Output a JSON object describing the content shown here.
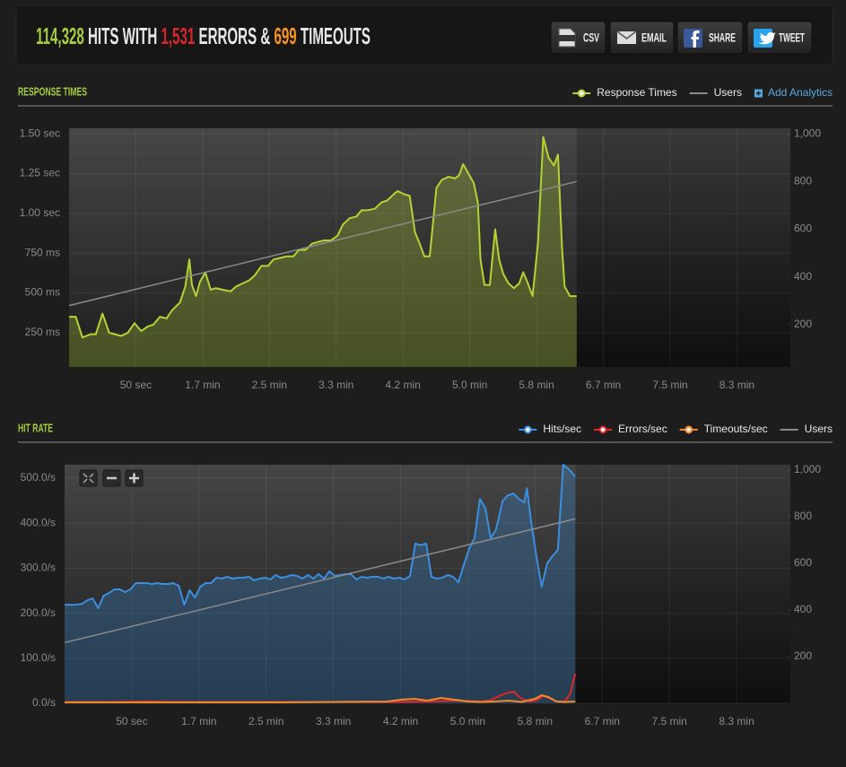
{
  "header": {
    "hits": "114,328",
    "hits_label": "HITS WITH",
    "errors": "1,531",
    "errors_label": "ERRORS &",
    "timeouts": "699",
    "timeouts_label": "TIMEOUTS"
  },
  "buttons": [
    "CSV",
    "EMAIL",
    "SHARE",
    "TWEET"
  ],
  "chart_data": [
    {
      "type": "line",
      "title": "RESPONSE TIMES",
      "legend_link": "Add Analytics",
      "xlim": [
        0,
        540
      ],
      "xticks": [
        {
          "value": 50,
          "label": "50 sec"
        },
        {
          "value": 100,
          "label": "1.7 min"
        },
        {
          "value": 150,
          "label": "2.5 min"
        },
        {
          "value": 200,
          "label": "3.3 min"
        },
        {
          "value": 250,
          "label": "4.2 min"
        },
        {
          "value": 300,
          "label": "5.0 min"
        },
        {
          "value": 350,
          "label": "5.8 min"
        },
        {
          "value": 400,
          "label": "6.7 min"
        },
        {
          "value": 450,
          "label": "7.5 min"
        },
        {
          "value": 500,
          "label": "8.3 min"
        }
      ],
      "ylim": [
        35,
        1535
      ],
      "yticks": [
        {
          "value": 250,
          "label": "250 ms"
        },
        {
          "value": 500,
          "label": "500 ms"
        },
        {
          "value": 750,
          "label": "750 ms"
        },
        {
          "value": 1000,
          "label": "1.00 sec"
        },
        {
          "value": 1250,
          "label": "1.25 sec"
        },
        {
          "value": 1500,
          "label": "1.50 sec"
        }
      ],
      "y2lim": [
        23,
        1023
      ],
      "y2ticks": [
        200,
        400,
        600,
        800,
        {
          "value": 1000,
          "label": "1,000"
        }
      ],
      "grid": true,
      "series": [
        {
          "name": "Response Times",
          "color": "#b5d334",
          "area": true,
          "marker": true,
          "x": [
            0,
            5,
            10,
            16,
            20,
            25,
            30,
            39,
            44,
            49,
            54,
            59,
            63,
            68,
            73,
            77,
            83,
            87,
            90,
            92,
            95,
            98,
            102,
            106,
            110,
            115,
            121,
            125,
            130,
            135,
            139,
            144,
            149,
            153,
            158,
            163,
            168,
            172,
            177,
            182,
            186,
            191,
            196,
            201,
            205,
            210,
            215,
            219,
            224,
            229,
            234,
            238,
            243,
            246,
            251,
            255,
            259,
            262,
            266,
            270,
            275,
            279,
            284,
            289,
            292,
            295,
            299,
            303,
            306,
            308,
            311,
            315,
            319,
            322,
            325,
            329,
            333,
            337,
            340,
            343,
            347,
            351,
            355,
            359,
            363,
            366,
            369,
            371,
            375,
            380
          ],
          "values": [
            350,
            350,
            220,
            240,
            240,
            370,
            250,
            230,
            250,
            310,
            260,
            290,
            300,
            350,
            340,
            390,
            440,
            540,
            710,
            550,
            480,
            570,
            630,
            520,
            530,
            520,
            510,
            540,
            560,
            580,
            610,
            670,
            670,
            710,
            720,
            730,
            730,
            770,
            770,
            810,
            820,
            830,
            830,
            860,
            930,
            970,
            980,
            1020,
            1020,
            1030,
            1070,
            1080,
            1120,
            1140,
            1120,
            1110,
            880,
            820,
            730,
            730,
            1160,
            1210,
            1230,
            1220,
            1240,
            1310,
            1250,
            1190,
            1070,
            710,
            550,
            550,
            900,
            710,
            620,
            560,
            530,
            560,
            630,
            570,
            480,
            810,
            1480,
            1350,
            1300,
            1370,
            790,
            540,
            480,
            480
          ]
        },
        {
          "name": "Users",
          "color": "#8a8a8a",
          "axis": "y2",
          "x": [
            0,
            380
          ],
          "values": [
            280,
            800
          ]
        }
      ]
    },
    {
      "type": "line",
      "title": "HIT RATE",
      "xlim": [
        0,
        540
      ],
      "xticks": [
        {
          "value": 50,
          "label": "50 sec"
        },
        {
          "value": 100,
          "label": "1.7 min"
        },
        {
          "value": 150,
          "label": "2.5 min"
        },
        {
          "value": 200,
          "label": "3.3 min"
        },
        {
          "value": 250,
          "label": "4.2 min"
        },
        {
          "value": 300,
          "label": "5.0 min"
        },
        {
          "value": 350,
          "label": "5.8 min"
        },
        {
          "value": 400,
          "label": "6.7 min"
        },
        {
          "value": 450,
          "label": "7.5 min"
        },
        {
          "value": 500,
          "label": "8.3 min"
        }
      ],
      "ylim": [
        0,
        530
      ],
      "yticks": [
        {
          "value": 0,
          "label": "0.0/s"
        },
        {
          "value": 100,
          "label": "100.0/s"
        },
        {
          "value": 200,
          "label": "200.0/s"
        },
        {
          "value": 300,
          "label": "300.0/s"
        },
        {
          "value": 400,
          "label": "400.0/s"
        },
        {
          "value": 500,
          "label": "500.0/s"
        }
      ],
      "y2lim": [
        0,
        1022
      ],
      "y2ticks": [
        200,
        400,
        600,
        800,
        {
          "value": 1000,
          "label": "1,000"
        }
      ],
      "grid": true,
      "series": [
        {
          "name": "Hits/sec",
          "color": "#3b8ee0",
          "area": true,
          "marker": true,
          "x": [
            0,
            8,
            13,
            17,
            21,
            25,
            29,
            33,
            37,
            41,
            45,
            49,
            53,
            57,
            61,
            65,
            69,
            73,
            77,
            81,
            85,
            89,
            93,
            97,
            101,
            105,
            109,
            113,
            117,
            121,
            125,
            129,
            133,
            137,
            141,
            145,
            149,
            153,
            157,
            161,
            165,
            169,
            173,
            177,
            181,
            185,
            189,
            193,
            197,
            201,
            205,
            209,
            213,
            217,
            221,
            225,
            229,
            233,
            237,
            241,
            245,
            249,
            253,
            257,
            261,
            265,
            269,
            273,
            277,
            281,
            285,
            289,
            293,
            297,
            301,
            305,
            309,
            313,
            317,
            321,
            326,
            330,
            334,
            338,
            342,
            344,
            347,
            351,
            355,
            359,
            363,
            367,
            371,
            375,
            380
          ],
          "values": [
            219,
            219,
            221,
            229,
            233,
            211,
            239,
            245,
            253,
            253,
            247,
            253,
            267,
            267,
            267,
            265,
            267,
            265,
            265,
            267,
            261,
            219,
            251,
            235,
            259,
            267,
            267,
            279,
            277,
            281,
            277,
            279,
            279,
            281,
            273,
            277,
            279,
            275,
            285,
            279,
            281,
            285,
            283,
            277,
            285,
            277,
            287,
            277,
            293,
            283,
            285,
            287,
            287,
            275,
            281,
            279,
            281,
            281,
            277,
            281,
            277,
            279,
            275,
            283,
            355,
            351,
            355,
            281,
            277,
            279,
            285,
            281,
            269,
            307,
            343,
            367,
            454,
            434,
            367,
            386,
            450,
            462,
            466,
            454,
            446,
            478,
            406,
            327,
            259,
            311,
            327,
            341,
            530,
            520,
            504
          ]
        },
        {
          "name": "Errors/sec",
          "color": "#e0262a",
          "marker": true,
          "x": [
            0,
            30,
            60,
            90,
            120,
            150,
            180,
            210,
            240,
            270,
            290,
            300,
            310,
            316,
            322,
            328,
            334,
            340,
            346,
            352,
            356,
            360,
            366,
            372,
            376,
            380
          ],
          "values": [
            3,
            3,
            4,
            3,
            3,
            3,
            3,
            3,
            3,
            4,
            6,
            5,
            4,
            6,
            14,
            22,
            26,
            10,
            4,
            8,
            16,
            12,
            4,
            4,
            20,
            66
          ]
        },
        {
          "name": "Timeouts/sec",
          "color": "#f0892a",
          "marker": true,
          "x": [
            0,
            40,
            80,
            120,
            160,
            200,
            240,
            250,
            260,
            270,
            280,
            290,
            300,
            310,
            320,
            330,
            340,
            350,
            355,
            360,
            366,
            372,
            380
          ],
          "values": [
            2,
            2,
            2,
            2,
            2,
            3,
            4,
            8,
            10,
            6,
            12,
            8,
            4,
            3,
            4,
            6,
            3,
            10,
            18,
            14,
            4,
            3,
            4
          ]
        },
        {
          "name": "Users",
          "color": "#8a8a8a",
          "axis": "y2",
          "x": [
            0,
            380
          ],
          "values": [
            260,
            790
          ]
        }
      ]
    }
  ]
}
